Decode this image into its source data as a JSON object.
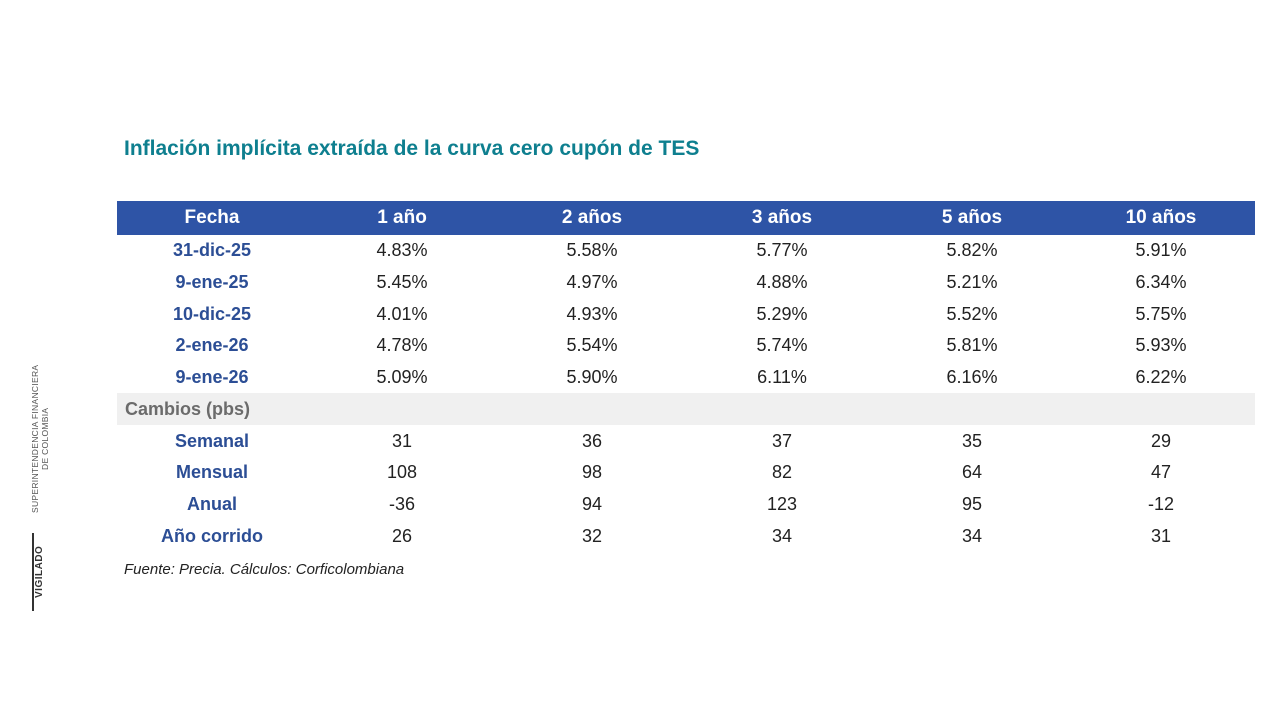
{
  "title": "Inflación implícita extraída de la curva cero cupón de TES",
  "table": {
    "headers": [
      "Fecha",
      "1 año",
      "2 años",
      "3 años",
      "5 años",
      "10 años"
    ],
    "rows": [
      {
        "label": "31-dic-25",
        "values": [
          "4.83%",
          "5.58%",
          "5.77%",
          "5.82%",
          "5.91%"
        ]
      },
      {
        "label": "9-ene-25",
        "values": [
          "5.45%",
          "4.97%",
          "4.88%",
          "5.21%",
          "6.34%"
        ]
      },
      {
        "label": "10-dic-25",
        "values": [
          "4.01%",
          "4.93%",
          "5.29%",
          "5.52%",
          "5.75%"
        ]
      },
      {
        "label": "2-ene-26",
        "values": [
          "4.78%",
          "5.54%",
          "5.74%",
          "5.81%",
          "5.93%"
        ]
      },
      {
        "label": "9-ene-26",
        "values": [
          "5.09%",
          "5.90%",
          "6.11%",
          "6.16%",
          "6.22%"
        ]
      }
    ],
    "section_label": "Cambios (pbs)",
    "changes": [
      {
        "label": "Semanal",
        "values": [
          "31",
          "36",
          "37",
          "35",
          "29"
        ]
      },
      {
        "label": "Mensual",
        "values": [
          "108",
          "98",
          "82",
          "64",
          "47"
        ]
      },
      {
        "label": "Anual",
        "values": [
          "-36",
          "94",
          "123",
          "95",
          "-12"
        ]
      },
      {
        "label": "Año corrido",
        "values": [
          "26",
          "32",
          "34",
          "34",
          "31"
        ]
      }
    ]
  },
  "source": "Fuente: Precia. Cálculos: Corficolombiana",
  "watermark": {
    "line1": "SUPERINTENDENCIA FINANCIERA",
    "line2": "DE COLOMBIA",
    "label": "VIGILADO"
  },
  "colors": {
    "title": "#0e7f8f",
    "header_bg": "#2e54a6",
    "label": "#2c4e95",
    "section_bg": "#f0f0f0"
  }
}
